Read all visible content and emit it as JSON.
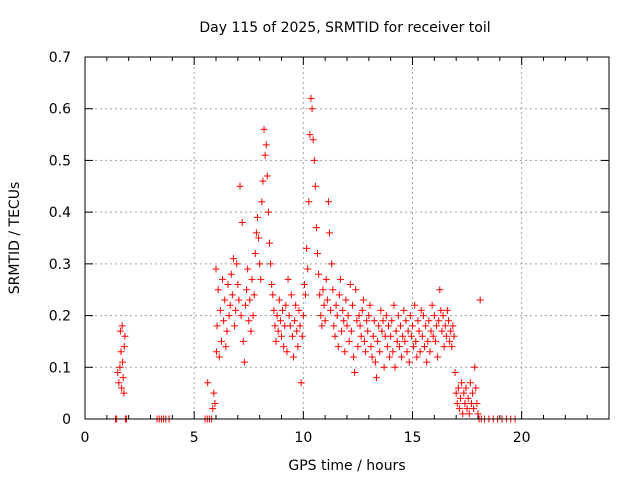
{
  "chart_data": {
    "type": "scatter",
    "title": "Day 115 of 2025, SRMTID for receiver toil",
    "xlabel": "GPS time / hours",
    "ylabel": "SRMTID / TECUs",
    "xlim": [
      0,
      24
    ],
    "ylim": [
      0,
      0.7
    ],
    "xticks": [
      0,
      5,
      10,
      15,
      20
    ],
    "yticks": [
      0,
      0.1,
      0.2,
      0.3,
      0.4,
      0.5,
      0.6,
      0.7
    ],
    "grid": true,
    "marker": "+",
    "color": "#ff0000",
    "series": [
      {
        "name": "SRMTID",
        "points": [
          [
            1.4,
            0
          ],
          [
            1.45,
            0
          ],
          [
            1.5,
            0.09
          ],
          [
            1.55,
            0.07
          ],
          [
            1.6,
            0.1
          ],
          [
            1.62,
            0.17
          ],
          [
            1.65,
            0.13
          ],
          [
            1.68,
            0.06
          ],
          [
            1.7,
            0.18
          ],
          [
            1.72,
            0.11
          ],
          [
            1.75,
            0.08
          ],
          [
            1.78,
            0.05
          ],
          [
            1.8,
            0.14
          ],
          [
            1.83,
            0.16
          ],
          [
            1.85,
            0
          ],
          [
            1.9,
            0
          ],
          [
            3.3,
            0
          ],
          [
            3.4,
            0
          ],
          [
            3.5,
            0
          ],
          [
            3.6,
            0
          ],
          [
            3.7,
            0
          ],
          [
            3.85,
            0
          ],
          [
            5.5,
            0
          ],
          [
            5.6,
            0
          ],
          [
            5.62,
            0.07
          ],
          [
            5.7,
            0
          ],
          [
            5.8,
            0
          ],
          [
            5.85,
            0.02
          ],
          [
            5.9,
            0.05
          ],
          [
            5.95,
            0.03
          ],
          [
            6.0,
            0.29
          ],
          [
            6.02,
            0.13
          ],
          [
            6.05,
            0.18
          ],
          [
            6.1,
            0.25
          ],
          [
            6.15,
            0.12
          ],
          [
            6.2,
            0.21
          ],
          [
            6.25,
            0.15
          ],
          [
            6.3,
            0.27
          ],
          [
            6.35,
            0.19
          ],
          [
            6.4,
            0.23
          ],
          [
            6.45,
            0.14
          ],
          [
            6.5,
            0.17
          ],
          [
            6.55,
            0.26
          ],
          [
            6.6,
            0.2
          ],
          [
            6.65,
            0.22
          ],
          [
            6.7,
            0.28
          ],
          [
            6.75,
            0.24
          ],
          [
            6.8,
            0.31
          ],
          [
            6.85,
            0.18
          ],
          [
            6.9,
            0.21
          ],
          [
            6.95,
            0.3
          ],
          [
            7.0,
            0.26
          ],
          [
            7.05,
            0.23
          ],
          [
            7.1,
            0.45
          ],
          [
            7.15,
            0.2
          ],
          [
            7.2,
            0.38
          ],
          [
            7.25,
            0.15
          ],
          [
            7.3,
            0.11
          ],
          [
            7.35,
            0.22
          ],
          [
            7.4,
            0.25
          ],
          [
            7.45,
            0.29
          ],
          [
            7.5,
            0.19
          ],
          [
            7.55,
            0.23
          ],
          [
            7.6,
            0.17
          ],
          [
            7.65,
            0.27
          ],
          [
            7.7,
            0.2
          ],
          [
            7.75,
            0.24
          ],
          [
            7.8,
            0.32
          ],
          [
            7.85,
            0.36
          ],
          [
            7.9,
            0.39
          ],
          [
            7.95,
            0.35
          ],
          [
            8.0,
            0.3
          ],
          [
            8.05,
            0.27
          ],
          [
            8.1,
            0.42
          ],
          [
            8.15,
            0.46
          ],
          [
            8.2,
            0.56
          ],
          [
            8.25,
            0.51
          ],
          [
            8.3,
            0.53
          ],
          [
            8.35,
            0.47
          ],
          [
            8.4,
            0.4
          ],
          [
            8.45,
            0.34
          ],
          [
            8.5,
            0.3
          ],
          [
            8.55,
            0.26
          ],
          [
            8.6,
            0.24
          ],
          [
            8.65,
            0.21
          ],
          [
            8.7,
            0.18
          ],
          [
            8.75,
            0.15
          ],
          [
            8.8,
            0.2
          ],
          [
            8.85,
            0.17
          ],
          [
            8.9,
            0.23
          ],
          [
            8.95,
            0.19
          ],
          [
            9.0,
            0.16
          ],
          [
            9.05,
            0.21
          ],
          [
            9.1,
            0.14
          ],
          [
            9.15,
            0.18
          ],
          [
            9.2,
            0.22
          ],
          [
            9.25,
            0.13
          ],
          [
            9.3,
            0.27
          ],
          [
            9.35,
            0.2
          ],
          [
            9.4,
            0.18
          ],
          [
            9.45,
            0.24
          ],
          [
            9.5,
            0.16
          ],
          [
            9.55,
            0.12
          ],
          [
            9.6,
            0.19
          ],
          [
            9.65,
            0.22
          ],
          [
            9.7,
            0.17
          ],
          [
            9.75,
            0.14
          ],
          [
            9.8,
            0.21
          ],
          [
            9.85,
            0.18
          ],
          [
            9.9,
            0.07
          ],
          [
            9.95,
            0.16
          ],
          [
            10.0,
            0.2
          ],
          [
            10.05,
            0.26
          ],
          [
            10.1,
            0.24
          ],
          [
            10.15,
            0.33
          ],
          [
            10.2,
            0.29
          ],
          [
            10.25,
            0.42
          ],
          [
            10.3,
            0.55
          ],
          [
            10.35,
            0.62
          ],
          [
            10.4,
            0.6
          ],
          [
            10.45,
            0.54
          ],
          [
            10.5,
            0.5
          ],
          [
            10.55,
            0.45
          ],
          [
            10.6,
            0.37
          ],
          [
            10.65,
            0.32
          ],
          [
            10.7,
            0.28
          ],
          [
            10.75,
            0.24
          ],
          [
            10.8,
            0.2
          ],
          [
            10.85,
            0.18
          ],
          [
            10.9,
            0.25
          ],
          [
            10.95,
            0.22
          ],
          [
            11.0,
            0.19
          ],
          [
            11.05,
            0.27
          ],
          [
            11.1,
            0.23
          ],
          [
            11.15,
            0.42
          ],
          [
            11.2,
            0.36
          ],
          [
            11.25,
            0.21
          ],
          [
            11.3,
            0.3
          ],
          [
            11.35,
            0.25
          ],
          [
            11.4,
            0.18
          ],
          [
            11.45,
            0.16
          ],
          [
            11.5,
            0.22
          ],
          [
            11.55,
            0.2
          ],
          [
            11.6,
            0.14
          ],
          [
            11.65,
            0.24
          ],
          [
            11.7,
            0.27
          ],
          [
            11.75,
            0.17
          ],
          [
            11.8,
            0.21
          ],
          [
            11.85,
            0.19
          ],
          [
            11.9,
            0.13
          ],
          [
            11.95,
            0.23
          ],
          [
            12.0,
            0.18
          ],
          [
            12.05,
            0.2
          ],
          [
            12.1,
            0.15
          ],
          [
            12.15,
            0.26
          ],
          [
            12.2,
            0.17
          ],
          [
            12.25,
            0.22
          ],
          [
            12.3,
            0.12
          ],
          [
            12.35,
            0.09
          ],
          [
            12.4,
            0.25
          ],
          [
            12.45,
            0.19
          ],
          [
            12.5,
            0.14
          ],
          [
            12.55,
            0.2
          ],
          [
            12.6,
            0.18
          ],
          [
            12.65,
            0.16
          ],
          [
            12.7,
            0.21
          ],
          [
            12.75,
            0.23
          ],
          [
            12.8,
            0.15
          ],
          [
            12.85,
            0.13
          ],
          [
            12.9,
            0.19
          ],
          [
            12.95,
            0.17
          ],
          [
            13.0,
            0.2
          ],
          [
            13.05,
            0.22
          ],
          [
            13.1,
            0.14
          ],
          [
            13.15,
            0.12
          ],
          [
            13.2,
            0.16
          ],
          [
            13.25,
            0.19
          ],
          [
            13.3,
            0.11
          ],
          [
            13.35,
            0.08
          ],
          [
            13.4,
            0.15
          ],
          [
            13.45,
            0.18
          ],
          [
            13.5,
            0.13
          ],
          [
            13.55,
            0.21
          ],
          [
            13.6,
            0.17
          ],
          [
            13.65,
            0.19
          ],
          [
            13.7,
            0.1
          ],
          [
            13.75,
            0.16
          ],
          [
            13.8,
            0.2
          ],
          [
            13.85,
            0.14
          ],
          [
            13.9,
            0.18
          ],
          [
            13.95,
            0.12
          ],
          [
            14.0,
            0.16
          ],
          [
            14.05,
            0.19
          ],
          [
            14.1,
            0.13
          ],
          [
            14.15,
            0.22
          ],
          [
            14.2,
            0.1
          ],
          [
            14.25,
            0.17
          ],
          [
            14.3,
            0.15
          ],
          [
            14.35,
            0.2
          ],
          [
            14.4,
            0.14
          ],
          [
            14.45,
            0.18
          ],
          [
            14.5,
            0.12
          ],
          [
            14.55,
            0.16
          ],
          [
            14.6,
            0.21
          ],
          [
            14.65,
            0.15
          ],
          [
            14.7,
            0.19
          ],
          [
            14.75,
            0.13
          ],
          [
            14.8,
            0.17
          ],
          [
            14.85,
            0.11
          ],
          [
            14.9,
            0.2
          ],
          [
            14.95,
            0.16
          ],
          [
            15.0,
            0.18
          ],
          [
            15.05,
            0.14
          ],
          [
            15.1,
            0.22
          ],
          [
            15.15,
            0.15
          ],
          [
            15.2,
            0.12
          ],
          [
            15.25,
            0.19
          ],
          [
            15.3,
            0.17
          ],
          [
            15.35,
            0.13
          ],
          [
            15.4,
            0.21
          ],
          [
            15.45,
            0.16
          ],
          [
            15.5,
            0.2
          ],
          [
            15.55,
            0.14
          ],
          [
            15.6,
            0.18
          ],
          [
            15.65,
            0.11
          ],
          [
            15.7,
            0.15
          ],
          [
            15.75,
            0.19
          ],
          [
            15.8,
            0.13
          ],
          [
            15.85,
            0.17
          ],
          [
            15.9,
            0.22
          ],
          [
            15.95,
            0.16
          ],
          [
            16.0,
            0.2
          ],
          [
            16.05,
            0.15
          ],
          [
            16.1,
            0.18
          ],
          [
            16.15,
            0.12
          ],
          [
            16.2,
            0.19
          ],
          [
            16.25,
            0.25
          ],
          [
            16.3,
            0.21
          ],
          [
            16.35,
            0.17
          ],
          [
            16.4,
            0.2
          ],
          [
            16.45,
            0.14
          ],
          [
            16.5,
            0.18
          ],
          [
            16.55,
            0.16
          ],
          [
            16.6,
            0.21
          ],
          [
            16.65,
            0.19
          ],
          [
            16.7,
            0.15
          ],
          [
            16.75,
            0.17
          ],
          [
            16.8,
            0.14
          ],
          [
            16.85,
            0.18
          ],
          [
            16.9,
            0.16
          ],
          [
            16.95,
            0.09
          ],
          [
            17.0,
            0.05
          ],
          [
            17.05,
            0.03
          ],
          [
            17.1,
            0.06
          ],
          [
            17.15,
            0.02
          ],
          [
            17.2,
            0.04
          ],
          [
            17.25,
            0.07
          ],
          [
            17.3,
            0.01
          ],
          [
            17.35,
            0.05
          ],
          [
            17.4,
            0.03
          ],
          [
            17.45,
            0.06
          ],
          [
            17.5,
            0.02
          ],
          [
            17.55,
            0.04
          ],
          [
            17.6,
            0.01
          ],
          [
            17.65,
            0.07
          ],
          [
            17.7,
            0.03
          ],
          [
            17.75,
            0.05
          ],
          [
            17.8,
            0.02
          ],
          [
            17.85,
            0.1
          ],
          [
            17.9,
            0.06
          ],
          [
            17.95,
            0.03
          ],
          [
            18.0,
            0.01
          ],
          [
            18.05,
            0
          ],
          [
            18.1,
            0.23
          ],
          [
            18.15,
            0
          ],
          [
            18.3,
            0
          ],
          [
            18.5,
            0
          ],
          [
            18.7,
            0
          ],
          [
            18.9,
            0
          ],
          [
            19.1,
            0
          ],
          [
            19.3,
            0
          ],
          [
            19.5,
            0
          ],
          [
            19.7,
            0
          ]
        ]
      }
    ]
  }
}
